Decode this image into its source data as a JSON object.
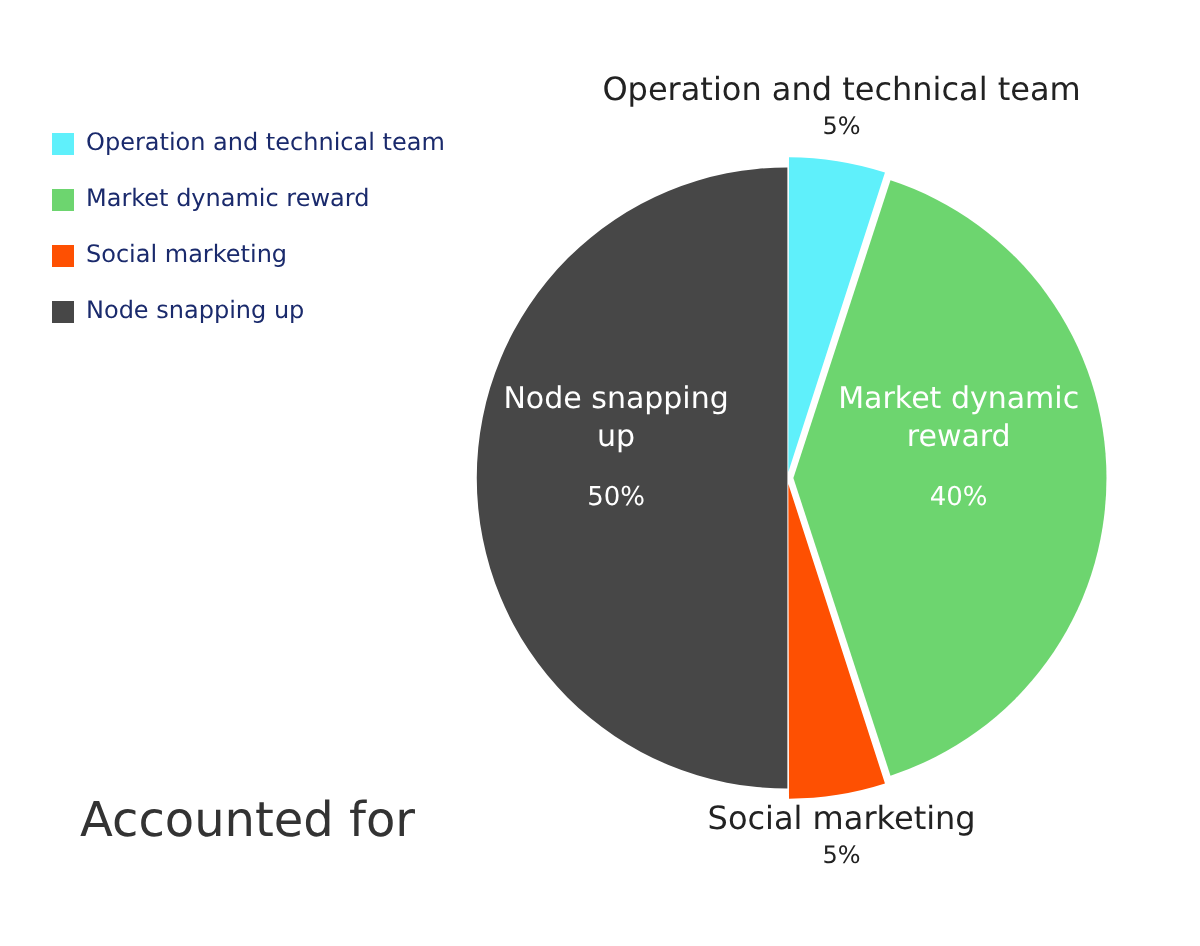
{
  "chart_data": {
    "type": "pie",
    "title": "Accounted for",
    "categories": [
      "Operation and technical team",
      "Market dynamic reward",
      "Social marketing",
      "Node snapping up"
    ],
    "values": [
      5,
      40,
      5,
      50
    ],
    "colors": [
      "#5ff0fb",
      "#6dd56f",
      "#fe5002",
      "#474747"
    ],
    "value_labels": [
      "5%",
      "40%",
      "5%",
      "50%"
    ],
    "legend": "top left"
  }
}
